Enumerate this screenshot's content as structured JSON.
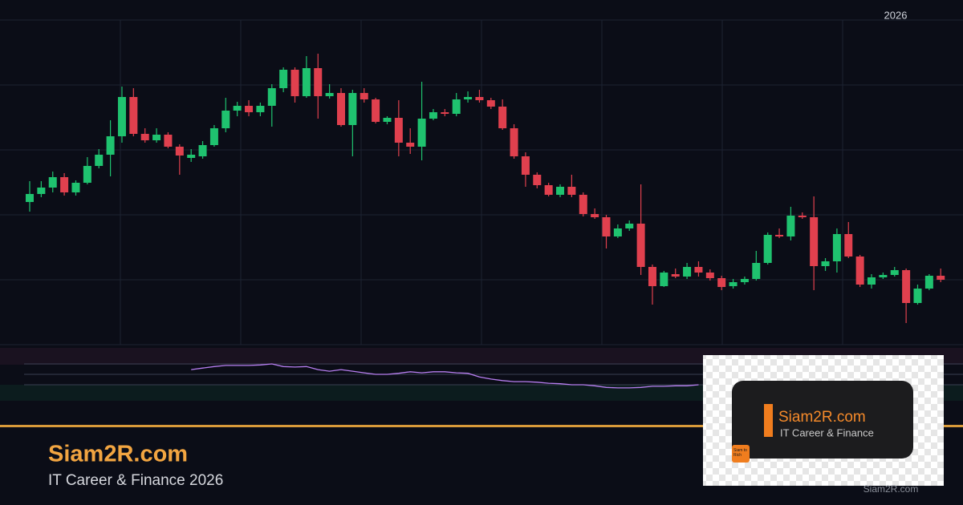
{
  "chart_data": {
    "type": "candlestick",
    "period_label": "2026",
    "ylim": [
      0,
      405
    ],
    "yticks": [
      0,
      81,
      162,
      243,
      324,
      405
    ],
    "grid": true,
    "up_color": "#1fc26f",
    "down_color": "#e0404e",
    "open": [
      178,
      188,
      196,
      209,
      190,
      202,
      223,
      237,
      260,
      309,
      263,
      255,
      262,
      247,
      233,
      235,
      249,
      270,
      292,
      298,
      290,
      298,
      320,
      343,
      310,
      345,
      310,
      314,
      274,
      314,
      306,
      278,
      283,
      252,
      247,
      282,
      290,
      288,
      306,
      309,
      305,
      297,
      270,
      235,
      212,
      199,
      187,
      197,
      187,
      163,
      159,
      135,
      145,
      151,
      97,
      73,
      88,
      85,
      97,
      90,
      83,
      73,
      78,
      82,
      102,
      137,
      135,
      161,
      159,
      98,
      104,
      138,
      110,
      75,
      84,
      87,
      93,
      52,
      70,
      86
    ],
    "high": [
      204,
      204,
      216,
      214,
      205,
      234,
      244,
      280,
      322,
      320,
      270,
      270,
      265,
      250,
      244,
      254,
      274,
      308,
      303,
      305,
      302,
      325,
      346,
      346,
      360,
      363,
      325,
      320,
      318,
      320,
      308,
      285,
      305,
      270,
      328,
      294,
      294,
      314,
      316,
      318,
      308,
      306,
      275,
      240,
      215,
      202,
      200,
      212,
      190,
      170,
      162,
      150,
      155,
      200,
      100,
      92,
      95,
      102,
      104,
      94,
      86,
      82,
      85,
      117,
      140,
      145,
      172,
      165,
      185,
      108,
      145,
      153,
      112,
      88,
      90,
      97,
      95,
      75,
      88,
      95
    ],
    "low": [
      166,
      184,
      190,
      186,
      186,
      200,
      220,
      210,
      252,
      260,
      252,
      252,
      245,
      212,
      228,
      232,
      247,
      265,
      285,
      285,
      285,
      272,
      315,
      302,
      308,
      282,
      307,
      272,
      235,
      302,
      276,
      275,
      235,
      238,
      230,
      280,
      285,
      285,
      302,
      302,
      294,
      268,
      232,
      197,
      195,
      185,
      184,
      184,
      160,
      157,
      120,
      133,
      142,
      87,
      50,
      72,
      83,
      82,
      85,
      80,
      68,
      70,
      75,
      80,
      100,
      133,
      130,
      157,
      68,
      92,
      90,
      108,
      72,
      70,
      82,
      85,
      27,
      50,
      68,
      78
    ],
    "close": [
      188,
      196,
      209,
      190,
      202,
      223,
      237,
      260,
      309,
      263,
      255,
      262,
      247,
      236,
      237,
      249,
      270,
      292,
      298,
      290,
      298,
      320,
      343,
      310,
      345,
      310,
      314,
      274,
      314,
      306,
      278,
      283,
      252,
      247,
      282,
      290,
      288,
      306,
      309,
      305,
      297,
      270,
      235,
      212,
      199,
      187,
      197,
      187,
      163,
      159,
      135,
      145,
      151,
      97,
      73,
      90,
      85,
      97,
      90,
      83,
      72,
      78,
      82,
      102,
      137,
      135,
      161,
      159,
      98,
      104,
      138,
      110,
      75,
      84,
      87,
      93,
      52,
      70,
      86,
      81
    ],
    "indicator": {
      "type": "line",
      "color": "#b77ef0",
      "ylim": [
        0,
        100
      ],
      "yticks": [
        30,
        50,
        70
      ],
      "values": [
        null,
        null,
        null,
        null,
        null,
        null,
        null,
        null,
        null,
        null,
        null,
        null,
        null,
        null,
        59,
        62,
        65,
        67,
        67,
        67,
        68,
        70,
        65,
        64,
        65,
        59,
        56,
        59,
        56,
        53,
        50,
        50,
        52,
        55,
        53,
        55,
        55,
        53,
        52,
        45,
        41,
        38,
        36,
        36,
        35,
        33,
        32,
        30,
        30,
        28,
        25,
        24,
        24,
        25,
        27,
        27,
        28,
        28,
        30,
        null,
        null,
        null,
        null,
        null,
        null,
        null,
        null,
        null,
        null,
        null,
        null,
        null,
        null,
        null,
        null,
        null,
        null,
        null,
        null,
        null
      ]
    }
  },
  "banner": {
    "brand": "Siam2R.com",
    "tagline": "IT Career & Finance 2026",
    "logo_title": "Siam2R.com",
    "logo_subtitle": "IT Career & Finance",
    "logo_badge": "Siam to Rich",
    "watermark": "Siam2R.com"
  }
}
